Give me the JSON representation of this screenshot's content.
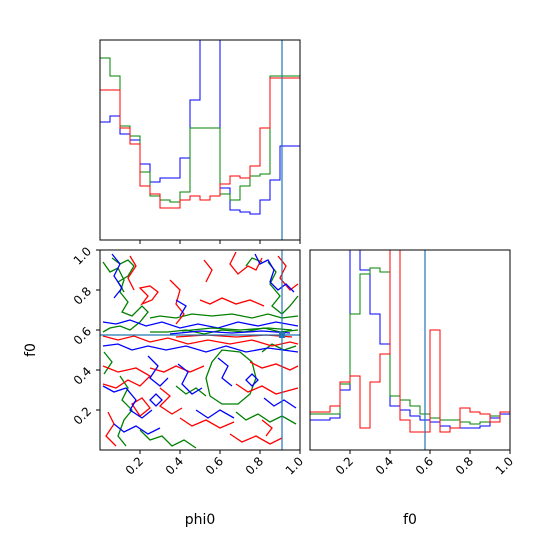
{
  "chart_data": {
    "type": "corner",
    "parameters": [
      "phi0",
      "f0"
    ],
    "truth": {
      "phi0": 0.91,
      "f0": 0.575
    },
    "axes_labels": {
      "x_lower_left": "phi0",
      "x_lower_right": "f0",
      "y_lower_left": "f0"
    },
    "ticks": {
      "phi0": [
        "0.2",
        "0.4",
        "0.6",
        "0.8",
        "1.0"
      ],
      "f0_x": [
        "0.2",
        "0.4",
        "0.6",
        "0.8",
        "1.0"
      ],
      "f0_y": [
        "0.2",
        "0.4",
        "0.6",
        "0.8",
        "1.0"
      ]
    },
    "xlim": [
      0,
      1
    ],
    "ylim": [
      0,
      1
    ],
    "colors": {
      "red": "#ff0000",
      "green": "#008000",
      "blue": "#0000ff",
      "truth": "#1f77b4"
    },
    "hist_phi0": {
      "edges": [
        0,
        0.05,
        0.1,
        0.15,
        0.2,
        0.25,
        0.3,
        0.35,
        0.4,
        0.45,
        0.5,
        0.55,
        0.6,
        0.65,
        0.7,
        0.75,
        0.8,
        0.85,
        0.9,
        0.95,
        1.0
      ],
      "ylim": [
        0,
        1
      ],
      "series": [
        {
          "name": "blue",
          "values": [
            0.59,
            0.62,
            0.53,
            0.5,
            0.38,
            0.29,
            0.31,
            0.31,
            0.41,
            0.7,
            1.08,
            1.08,
            0.26,
            0.15,
            0.14,
            0.13,
            0.2,
            0.3,
            0.47,
            0.47
          ]
        },
        {
          "name": "green",
          "values": [
            0.91,
            0.82,
            0.57,
            0.52,
            0.34,
            0.22,
            0.2,
            0.19,
            0.24,
            0.56,
            0.56,
            0.56,
            0.23,
            0.2,
            0.27,
            0.32,
            0.33,
            0.82,
            0.82,
            0.82
          ]
        },
        {
          "name": "red",
          "values": [
            0.75,
            0.75,
            0.56,
            0.48,
            0.27,
            0.23,
            0.16,
            0.16,
            0.2,
            0.22,
            0.2,
            0.22,
            0.28,
            0.32,
            0.31,
            0.37,
            0.56,
            0.81,
            0.81,
            0.81
          ]
        }
      ]
    },
    "hist_f0": {
      "edges": [
        0,
        0.05,
        0.1,
        0.15,
        0.2,
        0.25,
        0.3,
        0.35,
        0.4,
        0.45,
        0.5,
        0.55,
        0.6,
        0.65,
        0.7,
        0.75,
        0.8,
        0.85,
        0.9,
        0.95,
        1.0
      ],
      "ylim": [
        0,
        1
      ],
      "series": [
        {
          "name": "blue",
          "values": [
            0.15,
            0.15,
            0.16,
            0.3,
            1.04,
            0.9,
            0.68,
            0.53,
            0.22,
            0.2,
            0.17,
            0.15,
            0.14,
            0.12,
            0.11,
            0.11,
            0.11,
            0.12,
            0.16,
            0.18
          ]
        },
        {
          "name": "green",
          "values": [
            0.18,
            0.18,
            0.18,
            0.33,
            0.68,
            0.88,
            0.91,
            0.89,
            0.27,
            0.25,
            0.22,
            0.18,
            0.16,
            0.15,
            0.15,
            0.14,
            0.13,
            0.14,
            0.17,
            0.19
          ]
        },
        {
          "name": "red",
          "values": [
            0.19,
            0.19,
            0.22,
            0.34,
            0.37,
            0.11,
            0.34,
            0.48,
            1.08,
            0.15,
            0.09,
            0.09,
            0.6,
            0.09,
            0.11,
            0.21,
            0.19,
            0.18,
            0.14,
            0.19
          ]
        }
      ]
    }
  }
}
